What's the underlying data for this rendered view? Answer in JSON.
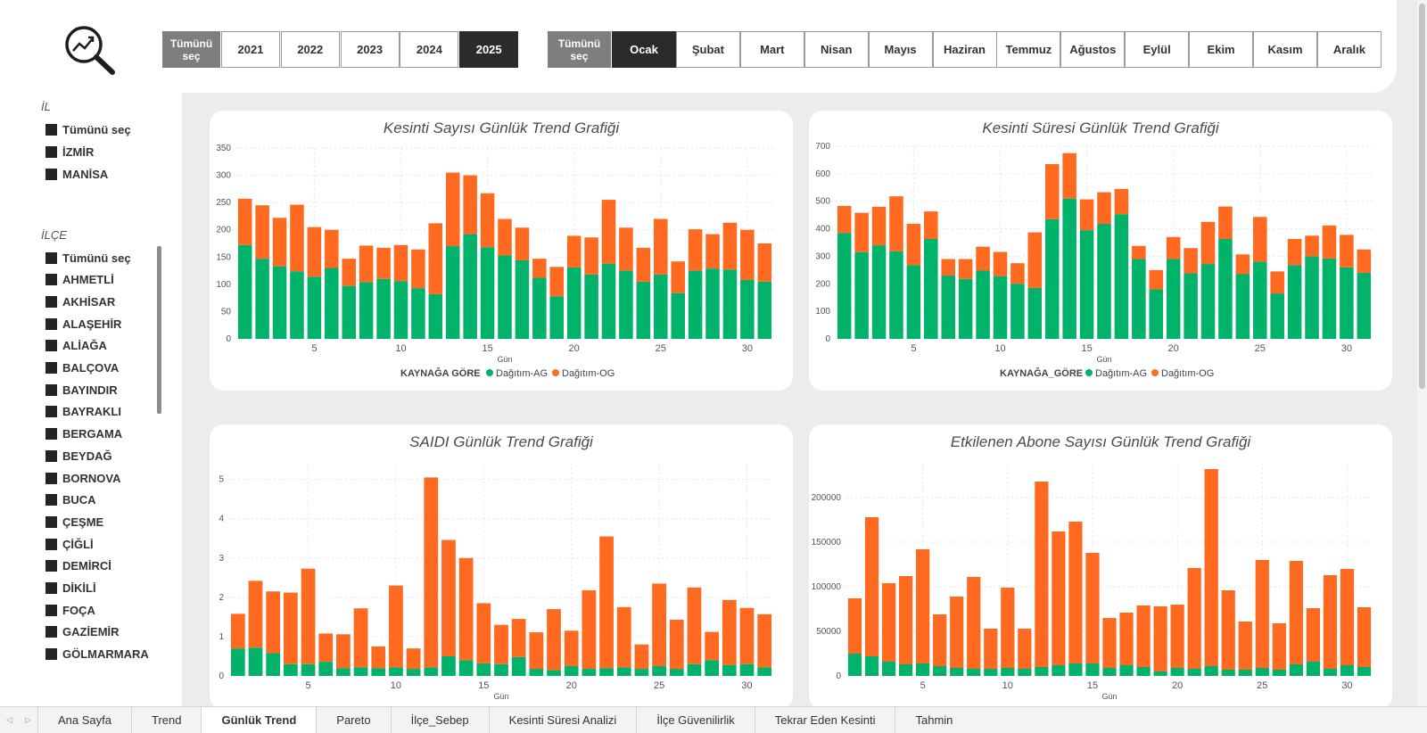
{
  "filters": {
    "year_all_label": "Tümünü seç",
    "years": [
      "2021",
      "2022",
      "2023",
      "2024",
      "2025"
    ],
    "selected_year": "2025",
    "month_all_label": "Tümünü seç",
    "months": [
      "Ocak",
      "Şubat",
      "Mart",
      "Nisan",
      "Mayıs",
      "Haziran",
      "Temmuz",
      "Ağustos",
      "Eylül",
      "Ekim",
      "Kasım",
      "Aralık"
    ],
    "selected_month": "Ocak"
  },
  "il_slicer": {
    "header": "İL",
    "items": [
      "Tümünü seç",
      "İZMİR",
      "MANİSA"
    ]
  },
  "ilce_slicer": {
    "header": "İLÇE",
    "items": [
      "Tümünü seç",
      "AHMETLİ",
      "AKHİSAR",
      "ALAŞEHİR",
      "ALİAĞA",
      "BALÇOVA",
      "BAYINDIR",
      "BAYRAKLI",
      "BERGAMA",
      "BEYDAĞ",
      "BORNOVA",
      "BUCA",
      "ÇEŞME",
      "ÇİĞLİ",
      "DEMİRCİ",
      "DİKİLİ",
      "FOÇA",
      "GAZİEMİR",
      "GÖLMARMARA"
    ]
  },
  "colors": {
    "ag": "#00b26a",
    "og": "#ff6a20",
    "slicer_selected": "#2b2b2b",
    "slicer_all": "#7e7e7e"
  },
  "icons": {
    "logo": "magnifier-chart-icon"
  },
  "tabs": [
    "Ana Sayfa",
    "Trend",
    "Günlük Trend",
    "Pareto",
    "İlçe_Sebep",
    "Kesinti Süresi Analizi",
    "İlçe Güvenilirlik",
    "Tekrar Eden Kesinti",
    "Tahmin"
  ],
  "active_tab": "Günlük Trend",
  "chart_data": [
    {
      "type": "bar",
      "stacked": true,
      "title": "Kesinti Sayısı Günlük Trend Grafiği",
      "xlabel": "Gün",
      "ylabel": "",
      "x": [
        1,
        2,
        3,
        4,
        5,
        6,
        7,
        8,
        9,
        10,
        11,
        12,
        13,
        14,
        15,
        16,
        17,
        18,
        19,
        20,
        21,
        22,
        23,
        24,
        25,
        26,
        27,
        28,
        29,
        30,
        31
      ],
      "xticks": [
        5,
        10,
        15,
        20,
        25,
        30
      ],
      "yticks": [
        0,
        50,
        100,
        150,
        200,
        250,
        300,
        350
      ],
      "ylim": [
        0,
        350
      ],
      "legend_title": "KAYNAĞA GÖRE",
      "legend_position": "bottom",
      "series": [
        {
          "name": "Dağıtım-AG",
          "values": [
            172,
            147,
            133,
            124,
            114,
            130,
            97,
            104,
            110,
            106,
            93,
            82,
            170,
            192,
            168,
            153,
            144,
            112,
            78,
            131,
            118,
            138,
            125,
            105,
            118,
            84,
            125,
            129,
            127,
            108,
            105
          ]
        },
        {
          "name": "Dağıtım-OG",
          "values": [
            85,
            98,
            89,
            122,
            91,
            70,
            50,
            67,
            57,
            66,
            71,
            130,
            135,
            108,
            99,
            67,
            60,
            35,
            54,
            58,
            68,
            117,
            79,
            62,
            102,
            58,
            76,
            63,
            86,
            92,
            70
          ]
        }
      ]
    },
    {
      "type": "bar",
      "stacked": true,
      "title": "Kesinti Süresi Günlük Trend Grafiği",
      "xlabel": "Gün",
      "ylabel": "",
      "x": [
        1,
        2,
        3,
        4,
        5,
        6,
        7,
        8,
        9,
        10,
        11,
        12,
        13,
        14,
        15,
        16,
        17,
        18,
        19,
        20,
        21,
        22,
        23,
        24,
        25,
        26,
        27,
        28,
        29,
        30,
        31
      ],
      "xticks": [
        5,
        10,
        15,
        20,
        25,
        30
      ],
      "yticks": [
        0,
        100,
        200,
        300,
        400,
        500,
        600,
        700
      ],
      "ylim": [
        0,
        700
      ],
      "legend_title": "KAYNAĞA_GÖRE",
      "legend_position": "bottom",
      "series": [
        {
          "name": "Dağıtım-AG",
          "values": [
            385,
            315,
            340,
            318,
            268,
            363,
            230,
            218,
            248,
            228,
            200,
            185,
            435,
            510,
            395,
            418,
            453,
            290,
            180,
            290,
            238,
            272,
            363,
            235,
            280,
            165,
            268,
            300,
            292,
            260,
            240
          ]
        },
        {
          "name": "Dağıtım-OG",
          "values": [
            98,
            143,
            140,
            200,
            150,
            100,
            60,
            72,
            87,
            88,
            75,
            202,
            200,
            165,
            112,
            115,
            92,
            48,
            70,
            80,
            92,
            153,
            118,
            72,
            163,
            80,
            95,
            75,
            120,
            118,
            85
          ]
        }
      ]
    },
    {
      "type": "bar",
      "stacked": true,
      "title": "SAIDI Günlük Trend Grafiği",
      "xlabel": "Gün",
      "ylabel": "",
      "x": [
        1,
        2,
        3,
        4,
        5,
        6,
        7,
        8,
        9,
        10,
        11,
        12,
        13,
        14,
        15,
        16,
        17,
        18,
        19,
        20,
        21,
        22,
        23,
        24,
        25,
        26,
        27,
        28,
        29,
        30,
        31
      ],
      "xticks": [
        5,
        10,
        15,
        20,
        25,
        30
      ],
      "yticks": [
        0,
        1,
        2,
        3,
        4,
        5
      ],
      "ylim": [
        0,
        5.4
      ],
      "series": [
        {
          "name": "Dağıtım-AG",
          "values": [
            0.7,
            0.72,
            0.58,
            0.3,
            0.3,
            0.36,
            0.2,
            0.22,
            0.2,
            0.22,
            0.18,
            0.22,
            0.5,
            0.4,
            0.32,
            0.3,
            0.48,
            0.18,
            0.15,
            0.25,
            0.18,
            0.2,
            0.22,
            0.18,
            0.25,
            0.18,
            0.3,
            0.4,
            0.28,
            0.3,
            0.22
          ]
        },
        {
          "name": "Dağıtım-OG",
          "values": [
            0.88,
            1.7,
            1.57,
            1.82,
            2.43,
            0.72,
            0.86,
            1.5,
            0.55,
            2.08,
            0.52,
            4.83,
            2.96,
            2.6,
            1.53,
            1.0,
            0.97,
            0.93,
            1.55,
            0.9,
            2.0,
            3.35,
            1.53,
            0.62,
            2.1,
            1.25,
            1.95,
            0.72,
            1.65,
            1.43,
            1.35
          ]
        }
      ]
    },
    {
      "type": "bar",
      "stacked": true,
      "title": "Etkilenen Abone Sayısı Günlük Trend Grafiği",
      "xlabel": "Gün",
      "ylabel": "",
      "x": [
        1,
        2,
        3,
        4,
        5,
        6,
        7,
        8,
        9,
        10,
        11,
        12,
        13,
        14,
        15,
        16,
        17,
        18,
        19,
        20,
        21,
        22,
        23,
        24,
        25,
        26,
        27,
        28,
        29,
        30,
        31
      ],
      "xticks": [
        5,
        10,
        15,
        20,
        25,
        30
      ],
      "yticks": [
        0,
        50000,
        100000,
        150000,
        200000
      ],
      "ylim": [
        0,
        238000
      ],
      "series": [
        {
          "name": "Dağıtım-AG",
          "values": [
            25000,
            22000,
            16000,
            13000,
            14000,
            11000,
            9000,
            8000,
            8000,
            9000,
            8000,
            10000,
            12000,
            14000,
            14000,
            9000,
            12000,
            10000,
            5000,
            9000,
            8000,
            11000,
            7000,
            7000,
            9000,
            7000,
            13000,
            16000,
            8000,
            12000,
            10000
          ]
        },
        {
          "name": "Dağıtım-OG",
          "values": [
            62000,
            156000,
            88000,
            99000,
            128000,
            58000,
            80000,
            103000,
            45000,
            90000,
            45000,
            208000,
            150000,
            159000,
            124000,
            56000,
            59000,
            69000,
            73000,
            71000,
            113000,
            221000,
            89000,
            54000,
            121000,
            52000,
            116000,
            60000,
            105000,
            108000,
            67000
          ]
        }
      ]
    }
  ]
}
